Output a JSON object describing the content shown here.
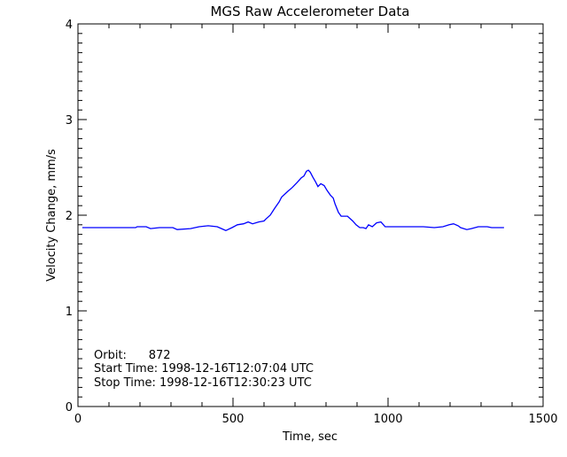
{
  "chart_data": {
    "type": "line",
    "title": "MGS Raw Accelerometer Data",
    "xlabel": "Time, sec",
    "ylabel": "Velocity Change, mm/s",
    "xlim": [
      0,
      1500
    ],
    "ylim": [
      0,
      4
    ],
    "xticks": [
      "0",
      "500",
      "1000",
      "1500"
    ],
    "yticks": [
      "0",
      "1",
      "2",
      "3",
      "4"
    ],
    "grid": false,
    "line_color": "#0000ff",
    "annotations": [
      "Orbit:      872",
      "Start Time: 1998-12-16T12:07:04 UTC",
      "Stop Time: 1998-12-16T12:30:23 UTC"
    ],
    "series": [
      {
        "x": [
          14,
          186,
          191,
          220,
          234,
          263,
          306,
          320,
          363,
          391,
          420,
          449,
          463,
          477,
          497,
          514,
          534,
          549,
          563,
          583,
          600,
          606,
          620,
          634,
          649,
          657,
          677,
          691,
          706,
          720,
          729,
          737,
          743,
          749,
          757,
          766,
          774,
          783,
          794,
          803,
          814,
          823,
          829,
          840,
          849,
          869,
          886,
          897,
          909,
          920,
          929,
          937,
          949,
          963,
          977,
          991,
          1020,
          1063,
          1114,
          1149,
          1177,
          1197,
          1211,
          1226,
          1234,
          1254,
          1269,
          1291,
          1320,
          1334,
          1349,
          1374
        ],
        "y": [
          1.87,
          1.87,
          1.88,
          1.88,
          1.86,
          1.87,
          1.87,
          1.85,
          1.86,
          1.88,
          1.89,
          1.88,
          1.86,
          1.84,
          1.87,
          1.9,
          1.91,
          1.93,
          1.91,
          1.93,
          1.94,
          1.96,
          2.0,
          2.07,
          2.14,
          2.19,
          2.25,
          2.29,
          2.34,
          2.39,
          2.41,
          2.46,
          2.47,
          2.45,
          2.4,
          2.35,
          2.3,
          2.33,
          2.31,
          2.26,
          2.21,
          2.18,
          2.12,
          2.03,
          1.99,
          1.99,
          1.94,
          1.9,
          1.87,
          1.87,
          1.86,
          1.9,
          1.88,
          1.92,
          1.93,
          1.88,
          1.88,
          1.88,
          1.88,
          1.87,
          1.88,
          1.9,
          1.91,
          1.89,
          1.87,
          1.85,
          1.86,
          1.88,
          1.88,
          1.87,
          1.87,
          1.87
        ]
      }
    ]
  }
}
